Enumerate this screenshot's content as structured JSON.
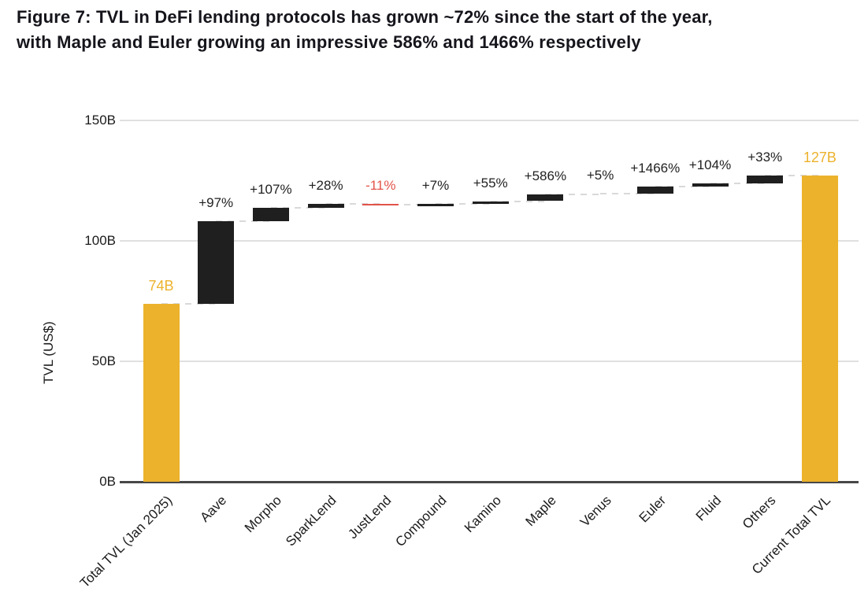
{
  "figure": {
    "title_line1": "Figure 7: TVL in DeFi lending protocols has grown ~72% since the start of the year,",
    "title_line2": "with Maple and Euler growing an impressive 586% and 1466% respectively"
  },
  "chart_data": {
    "type": "bar",
    "subtype": "waterfall",
    "title": "Figure 7: TVL in DeFi lending protocols has grown ~72% since the start of the year, with Maple and Euler growing an impressive 586% and 1466% respectively",
    "xlabel": "",
    "ylabel": "TVL (US$)",
    "unit": "USD billions",
    "ylim": [
      0,
      150
    ],
    "grid": true,
    "legend": false,
    "yticks": [
      {
        "value": 0,
        "label": "0B"
      },
      {
        "value": 50,
        "label": "50B"
      },
      {
        "value": 100,
        "label": "100B"
      },
      {
        "value": 150,
        "label": "150B"
      }
    ],
    "categories": [
      "Total TVL (Jan 2025)",
      "Aave",
      "Morpho",
      "SparkLend",
      "JustLend",
      "Compound",
      "Kamino",
      "Maple",
      "Venus",
      "Euler",
      "Fluid",
      "Others",
      "Current Total TVL"
    ],
    "bars": [
      {
        "category": "Total TVL (Jan 2025)",
        "role": "total",
        "start": 0,
        "end": 74,
        "value_label": "74B",
        "bar_rendered": true
      },
      {
        "category": "Aave",
        "role": "increase",
        "start": 74,
        "end": 108.2,
        "delta": 34.2,
        "value_label": "+97%",
        "bar_rendered": true
      },
      {
        "category": "Morpho",
        "role": "increase",
        "start": 108.2,
        "end": 113.6,
        "delta": 5.4,
        "value_label": "+107%",
        "bar_rendered": true
      },
      {
        "category": "SparkLend",
        "role": "increase",
        "start": 113.6,
        "end": 115.4,
        "delta": 1.8,
        "value_label": "+28%",
        "bar_rendered": true
      },
      {
        "category": "JustLend",
        "role": "decrease",
        "start": 115.4,
        "end": 115,
        "delta": -0.4,
        "value_label": "-11%",
        "bar_rendered": true
      },
      {
        "category": "Compound",
        "role": "increase",
        "start": 115,
        "end": 115.2,
        "delta": 0.2,
        "value_label": "+7%",
        "bar_rendered": true
      },
      {
        "category": "Kamino",
        "role": "increase",
        "start": 115.2,
        "end": 116.5,
        "delta": 1.3,
        "value_label": "+55%",
        "bar_rendered": true
      },
      {
        "category": "Maple",
        "role": "increase",
        "start": 116.5,
        "end": 119.4,
        "delta": 2.9,
        "value_label": "+586%",
        "bar_rendered": true
      },
      {
        "category": "Venus",
        "role": "increase",
        "start": 119.4,
        "end": 119.5,
        "delta": 0.1,
        "value_label": "+5%",
        "bar_rendered": false
      },
      {
        "category": "Euler",
        "role": "increase",
        "start": 119.5,
        "end": 122.4,
        "delta": 2.9,
        "value_label": "+1466%",
        "bar_rendered": true
      },
      {
        "category": "Fluid",
        "role": "increase",
        "start": 122.4,
        "end": 123.8,
        "delta": 1.4,
        "value_label": "+104%",
        "bar_rendered": true
      },
      {
        "category": "Others",
        "role": "increase",
        "start": 123.8,
        "end": 127,
        "delta": 3.2,
        "value_label": "+33%",
        "bar_rendered": true
      },
      {
        "category": "Current Total TVL",
        "role": "total",
        "start": 0,
        "end": 127,
        "value_label": "127B",
        "bar_rendered": true
      }
    ],
    "colors": {
      "total_bar": "#ECB22C",
      "increase_bar": "#1F1F1F",
      "decrease_bar": "#E2544A",
      "grid_line": "#E0E0E0",
      "axis_line": "#474747",
      "connector": "#D9D9D9",
      "label_text": "#1F1F1F",
      "total_label": "#ECB22C",
      "decrease_label": "#E2544A"
    }
  }
}
